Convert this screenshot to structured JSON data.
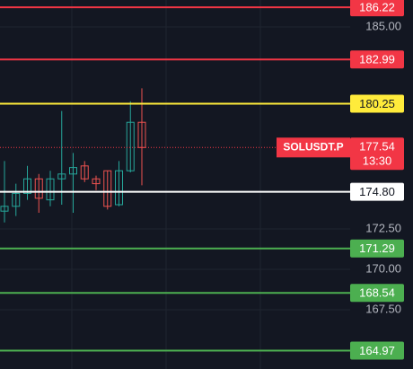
{
  "chart_data": {
    "type": "candlestick",
    "symbol": "SOLUSDT.P",
    "countdown": "13:30",
    "ylim": [
      163.83,
      186.67
    ],
    "yticks": [
      {
        "value": 185,
        "label": "185.00"
      },
      {
        "value": 172.5,
        "label": "172.50"
      },
      {
        "value": 170,
        "label": "170.00"
      },
      {
        "value": 167.5,
        "label": "167.50"
      }
    ],
    "grid": true,
    "up_color": "#26a69a",
    "down_color": "#ef5350",
    "open": [
      173.6,
      173.9,
      174.7,
      175.6,
      174.3,
      175.6,
      175.9,
      176.4,
      175.6,
      176.1,
      174.0,
      176.1,
      179.1
    ],
    "high": [
      176.7,
      175.3,
      176.4,
      175.9,
      176.1,
      179.8,
      177.2,
      176.7,
      175.8,
      176.1,
      176.7,
      180.4,
      181.2
    ],
    "low": [
      172.9,
      173.3,
      174.3,
      173.5,
      173.9,
      174.0,
      173.5,
      175.4,
      174.9,
      173.7,
      173.9,
      176.0,
      175.2
    ],
    "close": [
      173.9,
      174.7,
      175.6,
      174.4,
      175.6,
      175.9,
      176.3,
      175.6,
      175.3,
      173.9,
      176.1,
      179.1,
      177.54
    ],
    "last_price": {
      "value": 177.54,
      "color": "#f23645"
    },
    "levels": [
      {
        "value": 186.22,
        "color": "#f23645",
        "text_color": "#ffffff"
      },
      {
        "value": 182.99,
        "color": "#f23645",
        "text_color": "#ffffff"
      },
      {
        "value": 180.25,
        "color": "#ffeb3b",
        "text_color": "#131722"
      },
      {
        "value": 174.8,
        "label": "174.80",
        "color": "#ffffff",
        "text_color": "#131722"
      },
      {
        "value": 171.29,
        "color": "#4caf50",
        "text_color": "#ffffff"
      },
      {
        "value": 168.54,
        "color": "#4caf50",
        "text_color": "#ffffff"
      },
      {
        "value": 164.97,
        "color": "#4caf50",
        "text_color": "#ffffff"
      }
    ]
  }
}
